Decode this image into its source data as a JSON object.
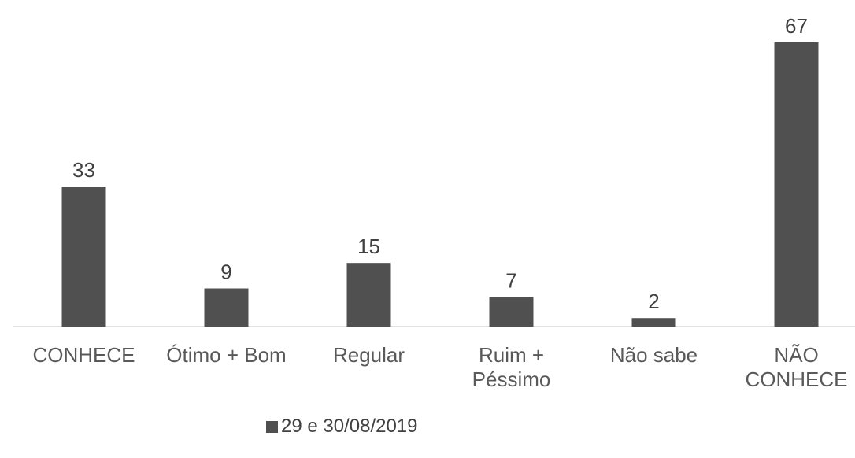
{
  "chart_data": {
    "type": "bar",
    "categories": [
      "CONHECE",
      "Ótimo + Bom",
      "Regular",
      "Ruim + Péssimo",
      "Não sabe",
      "NÃO CONHECE"
    ],
    "series": [
      {
        "name": "29 e 30/08/2019",
        "color": "#505050",
        "values": [
          33,
          9,
          15,
          7,
          2,
          67
        ]
      }
    ],
    "legend": "bottom"
  }
}
